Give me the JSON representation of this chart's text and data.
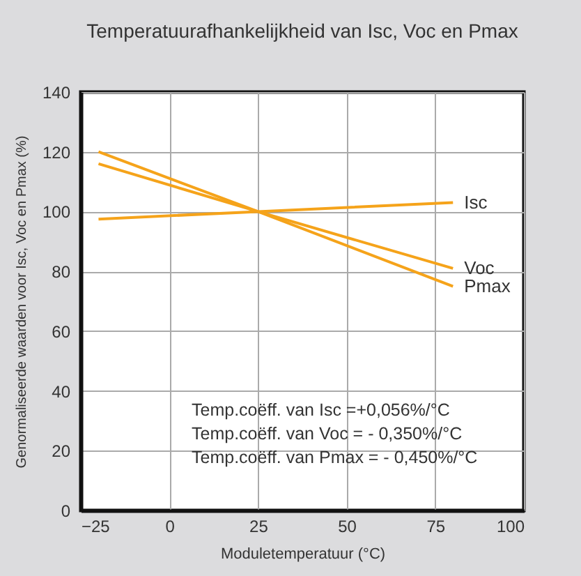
{
  "chart_data": {
    "type": "line",
    "title": "Temperatuurafhankelijkheid van Isc, Voc en Pmax",
    "xlabel": "Moduletemperatuur (°C)",
    "ylabel": "Genormaliseerde waarden voor Isc, Voc en Pmax (%)",
    "x": [
      -20,
      25,
      80
    ],
    "series": [
      {
        "name": "Isc",
        "color": "#f5a31a",
        "values": [
          97.5,
          100,
          103
        ]
      },
      {
        "name": "Voc",
        "color": "#f5a31a",
        "values": [
          116,
          100,
          81
        ]
      },
      {
        "name": "Pmax",
        "color": "#f5a31a",
        "values": [
          120,
          100,
          75
        ]
      }
    ],
    "xlim": [
      -25,
      100
    ],
    "xticks": [
      -25,
      0,
      25,
      50,
      75,
      100
    ],
    "ylim": [
      0,
      140
    ],
    "yticks": [
      0,
      20,
      40,
      60,
      80,
      100,
      120,
      140
    ],
    "grid": true,
    "legend": false,
    "annotations": [
      "Temp.coëff. van Isc      =+0,056%/°C",
      "Temp.coëff. van Voc    = - 0,350%/°C",
      "Temp.coëff. van Pmax = - 0,450%/°C"
    ]
  }
}
